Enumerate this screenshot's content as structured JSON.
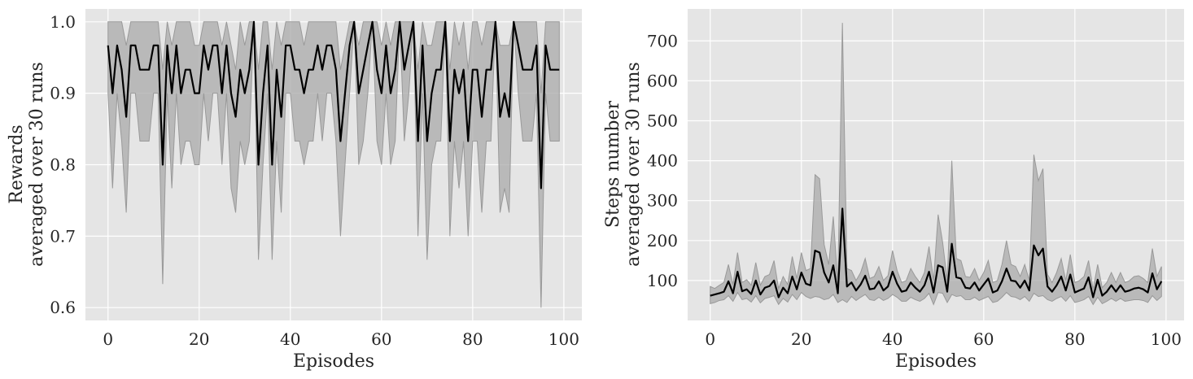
{
  "chart_data": [
    {
      "type": "line",
      "title": "",
      "xlabel": "Episodes",
      "ylabel_lines": [
        "Rewards",
        "averaged over 30 runs"
      ],
      "xlim": [
        -4.95,
        103.95
      ],
      "ylim": [
        0.582,
        1.018
      ],
      "xticks": [
        0,
        20,
        40,
        60,
        80,
        100
      ],
      "xtick_labels": [
        "0",
        "20",
        "40",
        "60",
        "80",
        "100"
      ],
      "yticks": [
        0.6,
        0.7,
        0.8,
        0.9,
        1.0
      ],
      "ytick_labels": [
        "0.6",
        "0.7",
        "0.8",
        "0.9",
        "1.0"
      ],
      "grid": true,
      "background": "#e5e5e5",
      "series": [
        {
          "x": [
            0,
            1,
            2,
            3,
            4,
            5,
            6,
            7,
            8,
            9,
            10,
            11,
            12,
            13,
            14,
            15,
            16,
            17,
            18,
            19,
            20,
            21,
            22,
            23,
            24,
            25,
            26,
            27,
            28,
            29,
            30,
            31,
            32,
            33,
            34,
            35,
            36,
            37,
            38,
            39,
            40,
            41,
            42,
            43,
            44,
            45,
            46,
            47,
            48,
            49,
            50,
            51,
            52,
            53,
            54,
            55,
            56,
            57,
            58,
            59,
            60,
            61,
            62,
            63,
            64,
            65,
            66,
            67,
            68,
            69,
            70,
            71,
            72,
            73,
            74,
            75,
            76,
            77,
            78,
            79,
            80,
            81,
            82,
            83,
            84,
            85,
            86,
            87,
            88,
            89,
            90,
            91,
            92,
            93,
            94,
            95,
            96,
            97,
            98,
            99
          ],
          "mean": [
            0.967,
            0.9,
            0.967,
            0.933,
            0.867,
            0.967,
            0.967,
            0.933,
            0.933,
            0.933,
            0.967,
            0.967,
            0.8,
            0.967,
            0.9,
            0.967,
            0.9,
            0.933,
            0.933,
            0.9,
            0.9,
            0.967,
            0.933,
            0.967,
            0.967,
            0.9,
            0.967,
            0.9,
            0.867,
            0.933,
            0.9,
            0.933,
            1.0,
            0.8,
            0.9,
            0.967,
            0.8,
            0.933,
            0.867,
            0.967,
            0.967,
            0.933,
            0.933,
            0.9,
            0.933,
            0.933,
            0.967,
            0.933,
            0.967,
            0.967,
            0.933,
            0.833,
            0.9,
            0.967,
            1.0,
            0.9,
            0.933,
            0.967,
            1.0,
            0.933,
            0.9,
            0.967,
            0.9,
            0.933,
            1.0,
            0.933,
            0.967,
            1.0,
            0.833,
            0.967,
            0.833,
            0.9,
            0.933,
            0.933,
            1.0,
            0.833,
            0.933,
            0.9,
            0.933,
            0.833,
            0.933,
            0.933,
            0.867,
            0.933,
            0.933,
            1.0,
            0.867,
            0.9,
            0.867,
            1.0,
            0.967,
            0.933,
            0.933,
            0.933,
            0.967,
            0.767,
            0.967,
            0.933,
            0.933,
            0.933
          ],
          "lower": [
            0.9,
            0.767,
            0.9,
            0.833,
            0.733,
            0.9,
            0.9,
            0.833,
            0.833,
            0.833,
            0.9,
            0.9,
            0.633,
            0.9,
            0.767,
            0.9,
            0.8,
            0.833,
            0.833,
            0.8,
            0.8,
            0.9,
            0.833,
            0.9,
            0.9,
            0.8,
            0.9,
            0.767,
            0.733,
            0.833,
            0.8,
            0.833,
            1.0,
            0.667,
            0.8,
            0.9,
            0.667,
            0.833,
            0.733,
            0.9,
            0.9,
            0.833,
            0.833,
            0.8,
            0.833,
            0.833,
            0.9,
            0.833,
            0.9,
            0.9,
            0.833,
            0.7,
            0.8,
            0.9,
            1.0,
            0.8,
            0.833,
            0.9,
            1.0,
            0.833,
            0.8,
            0.9,
            0.8,
            0.833,
            1.0,
            0.833,
            0.9,
            1.0,
            0.7,
            0.9,
            0.667,
            0.8,
            0.833,
            0.833,
            1.0,
            0.7,
            0.833,
            0.767,
            0.833,
            0.7,
            0.833,
            0.833,
            0.733,
            0.833,
            0.833,
            1.0,
            0.733,
            0.767,
            0.733,
            1.0,
            0.9,
            0.833,
            0.833,
            0.833,
            0.9,
            0.6,
            0.9,
            0.833,
            0.833,
            0.833
          ],
          "upper": [
            1.0,
            1.0,
            1.0,
            1.0,
            0.967,
            1.0,
            1.0,
            1.0,
            1.0,
            1.0,
            1.0,
            1.0,
            0.933,
            1.0,
            0.967,
            1.0,
            1.0,
            1.0,
            1.0,
            0.967,
            0.967,
            1.0,
            1.0,
            1.0,
            1.0,
            0.967,
            1.0,
            0.967,
            0.933,
            1.0,
            0.967,
            1.0,
            1.0,
            0.933,
            1.0,
            1.0,
            0.933,
            1.0,
            0.967,
            1.0,
            1.0,
            1.0,
            1.0,
            0.967,
            1.0,
            1.0,
            1.0,
            1.0,
            1.0,
            1.0,
            1.0,
            0.933,
            0.967,
            1.0,
            1.0,
            0.967,
            1.0,
            1.0,
            1.0,
            1.0,
            0.967,
            1.0,
            0.967,
            1.0,
            1.0,
            1.0,
            1.0,
            1.0,
            0.933,
            1.0,
            0.967,
            0.967,
            1.0,
            1.0,
            1.0,
            0.933,
            1.0,
            0.967,
            1.0,
            0.933,
            1.0,
            1.0,
            0.967,
            1.0,
            1.0,
            1.0,
            0.967,
            0.967,
            0.967,
            1.0,
            1.0,
            1.0,
            1.0,
            1.0,
            1.0,
            0.9,
            1.0,
            1.0,
            1.0,
            1.0
          ],
          "line_color": "#000000",
          "band_color": "#aaaaaa"
        }
      ]
    },
    {
      "type": "line",
      "title": "",
      "xlabel": "Episodes",
      "ylabel_lines": [
        "Steps number",
        "averaged over 30 runs"
      ],
      "xlim": [
        -4.95,
        103.95
      ],
      "ylim": [
        0,
        780
      ],
      "xticks": [
        0,
        20,
        40,
        60,
        80,
        100
      ],
      "xtick_labels": [
        "0",
        "20",
        "40",
        "60",
        "80",
        "100"
      ],
      "yticks": [
        100,
        200,
        300,
        400,
        500,
        600,
        700
      ],
      "ytick_labels": [
        "100",
        "200",
        "300",
        "400",
        "500",
        "600",
        "700"
      ],
      "grid": true,
      "background": "#e5e5e5",
      "series": [
        {
          "x": [
            0,
            1,
            2,
            3,
            4,
            5,
            6,
            7,
            8,
            9,
            10,
            11,
            12,
            13,
            14,
            15,
            16,
            17,
            18,
            19,
            20,
            21,
            22,
            23,
            24,
            25,
            26,
            27,
            28,
            29,
            30,
            31,
            32,
            33,
            34,
            35,
            36,
            37,
            38,
            39,
            40,
            41,
            42,
            43,
            44,
            45,
            46,
            47,
            48,
            49,
            50,
            51,
            52,
            53,
            54,
            55,
            56,
            57,
            58,
            59,
            60,
            61,
            62,
            63,
            64,
            65,
            66,
            67,
            68,
            69,
            70,
            71,
            72,
            73,
            74,
            75,
            76,
            77,
            78,
            79,
            80,
            81,
            82,
            83,
            84,
            85,
            86,
            87,
            88,
            89,
            90,
            91,
            92,
            93,
            94,
            95,
            96,
            97,
            98,
            99
          ],
          "mean": [
            62,
            65,
            68,
            72,
            98,
            68,
            122,
            73,
            78,
            66,
            100,
            65,
            82,
            86,
            100,
            58,
            82,
            68,
            110,
            78,
            120,
            92,
            88,
            175,
            170,
            120,
            95,
            138,
            68,
            280,
            85,
            95,
            75,
            90,
            112,
            78,
            80,
            98,
            75,
            85,
            122,
            92,
            72,
            75,
            95,
            82,
            72,
            88,
            122,
            70,
            138,
            133,
            72,
            192,
            108,
            105,
            82,
            80,
            95,
            75,
            90,
            105,
            70,
            75,
            98,
            130,
            100,
            98,
            82,
            100,
            75,
            188,
            163,
            180,
            85,
            72,
            88,
            110,
            75,
            115,
            70,
            75,
            80,
            108,
            58,
            102,
            62,
            72,
            88,
            72,
            88,
            72,
            75,
            80,
            82,
            78,
            70,
            118,
            78,
            98
          ],
          "lower": [
            42,
            45,
            50,
            52,
            62,
            48,
            70,
            52,
            55,
            46,
            62,
            44,
            55,
            58,
            62,
            40,
            55,
            46,
            65,
            52,
            70,
            60,
            55,
            60,
            58,
            52,
            55,
            65,
            45,
            52,
            45,
            60,
            50,
            58,
            65,
            52,
            50,
            58,
            50,
            55,
            65,
            58,
            48,
            48,
            58,
            52,
            48,
            55,
            68,
            40,
            70,
            68,
            45,
            65,
            60,
            62,
            52,
            52,
            58,
            50,
            55,
            60,
            45,
            48,
            58,
            70,
            60,
            58,
            52,
            60,
            48,
            68,
            60,
            62,
            52,
            48,
            55,
            60,
            48,
            62,
            45,
            48,
            52,
            60,
            40,
            58,
            42,
            48,
            55,
            48,
            55,
            48,
            50,
            52,
            52,
            50,
            45,
            62,
            50,
            60
          ],
          "upper": [
            85,
            80,
            88,
            95,
            140,
            90,
            170,
            95,
            102,
            88,
            145,
            88,
            110,
            115,
            150,
            80,
            110,
            90,
            160,
            105,
            170,
            125,
            130,
            365,
            355,
            190,
            140,
            260,
            92,
            745,
            130,
            125,
            100,
            120,
            155,
            105,
            110,
            135,
            100,
            112,
            175,
            125,
            95,
            100,
            130,
            110,
            95,
            120,
            185,
            100,
            265,
            195,
            100,
            400,
            155,
            150,
            110,
            108,
            130,
            100,
            120,
            150,
            95,
            100,
            140,
            200,
            140,
            135,
            110,
            140,
            100,
            415,
            350,
            380,
            115,
            95,
            120,
            155,
            100,
            165,
            95,
            100,
            110,
            150,
            78,
            140,
            82,
            95,
            120,
            95,
            120,
            95,
            100,
            110,
            112,
            105,
            95,
            180,
            110,
            135
          ],
          "line_color": "#000000",
          "band_color": "#aaaaaa"
        }
      ]
    }
  ]
}
